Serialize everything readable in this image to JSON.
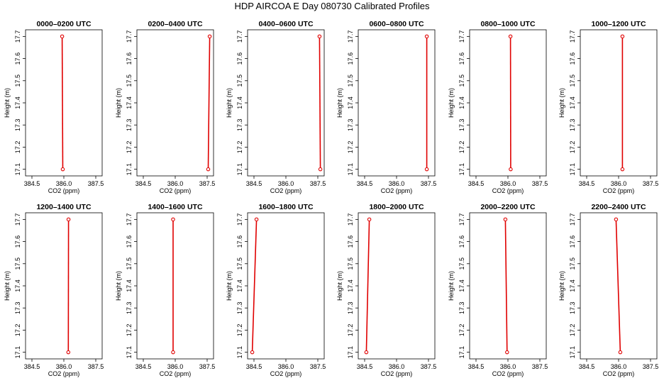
{
  "title": "HDP AIRCOA E  Day 080730  Calibrated Profiles",
  "colors": {
    "line": "#e00000",
    "axis": "#000000"
  },
  "chart_data": {
    "type": "line",
    "layout": "2x6 grid of small multiples",
    "xlabel": "CO2 (ppm)",
    "ylabel": "Height (m)",
    "xlim": [
      384.2,
      387.8
    ],
    "ylim": [
      17.07,
      17.73
    ],
    "xticks": [
      384.5,
      386.0,
      387.5
    ],
    "yticks": [
      17.1,
      17.2,
      17.3,
      17.4,
      17.5,
      17.6,
      17.7
    ],
    "grid": false,
    "panels": [
      {
        "title": "0000–0200 UTC",
        "points": [
          [
            385.92,
            17.7
          ],
          [
            385.95,
            17.1
          ]
        ]
      },
      {
        "title": "0200–0400 UTC",
        "points": [
          [
            387.62,
            17.7
          ],
          [
            387.55,
            17.1
          ]
        ]
      },
      {
        "title": "0400–0600 UTC",
        "points": [
          [
            387.58,
            17.7
          ],
          [
            387.62,
            17.1
          ]
        ]
      },
      {
        "title": "0600–0800 UTC",
        "points": [
          [
            387.42,
            17.7
          ],
          [
            387.42,
            17.1
          ]
        ]
      },
      {
        "title": "0800–1000 UTC",
        "points": [
          [
            386.12,
            17.7
          ],
          [
            386.13,
            17.1
          ]
        ]
      },
      {
        "title": "1000–1200 UTC",
        "points": [
          [
            386.18,
            17.7
          ],
          [
            386.18,
            17.1
          ]
        ]
      },
      {
        "title": "1200–1400 UTC",
        "points": [
          [
            386.22,
            17.7
          ],
          [
            386.21,
            17.1
          ]
        ]
      },
      {
        "title": "1400–1600 UTC",
        "points": [
          [
            385.9,
            17.7
          ],
          [
            385.9,
            17.1
          ]
        ]
      },
      {
        "title": "1600–1800 UTC",
        "points": [
          [
            384.62,
            17.7
          ],
          [
            384.42,
            17.1
          ]
        ]
      },
      {
        "title": "1800–2000 UTC",
        "points": [
          [
            384.72,
            17.7
          ],
          [
            384.58,
            17.1
          ]
        ]
      },
      {
        "title": "2000–2200 UTC",
        "points": [
          [
            385.88,
            17.7
          ],
          [
            385.96,
            17.1
          ]
        ]
      },
      {
        "title": "2200–2400 UTC",
        "points": [
          [
            385.88,
            17.7
          ],
          [
            386.08,
            17.1
          ]
        ]
      }
    ]
  }
}
